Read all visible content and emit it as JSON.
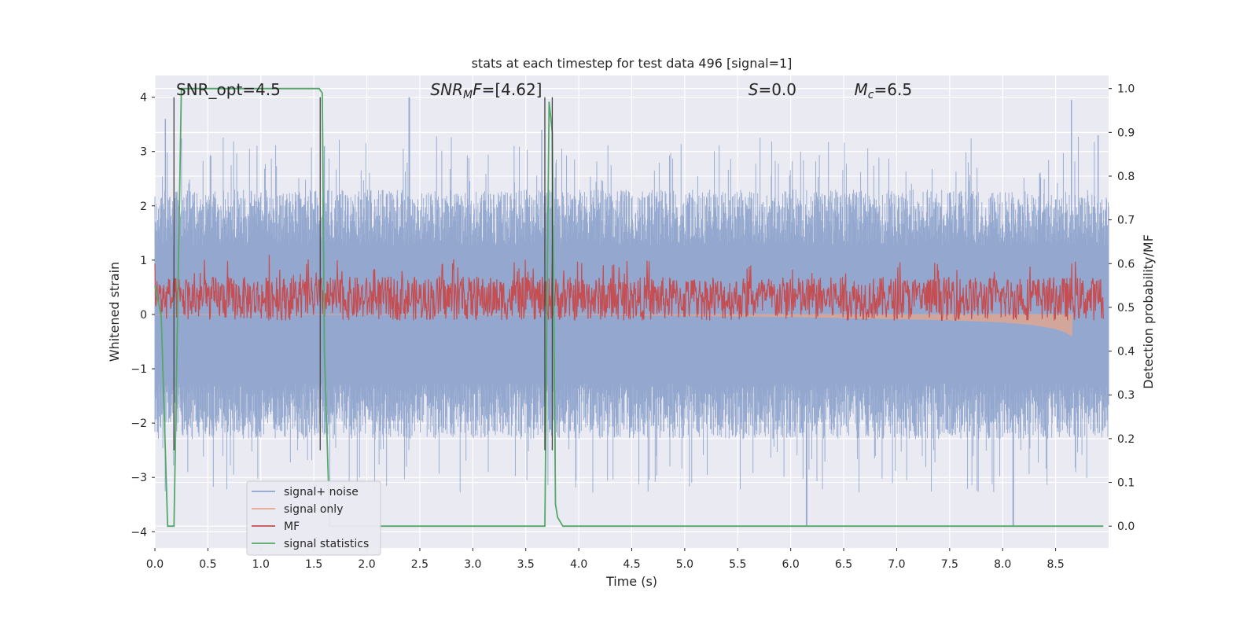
{
  "chart_data": {
    "type": "line",
    "title": "stats at each timestep for test data 496 [signal=1]",
    "xlabel": "Time (s)",
    "ylabel": "Whitened strain",
    "ylabel_right": "Detection probability/MF",
    "xlim": [
      0,
      9.0
    ],
    "ylim": [
      -4.3,
      4.4
    ],
    "ylim_right": [
      -0.05,
      1.03
    ],
    "xticks": [
      0.0,
      0.5,
      1.0,
      1.5,
      2.0,
      2.5,
      3.0,
      3.5,
      4.0,
      4.5,
      5.0,
      5.5,
      6.0,
      6.5,
      7.0,
      7.5,
      8.0,
      8.5
    ],
    "xtick_labels": [
      "0.0",
      "0.5",
      "1.0",
      "1.5",
      "2.0",
      "2.5",
      "3.0",
      "3.5",
      "4.0",
      "4.5",
      "5.0",
      "5.5",
      "6.0",
      "6.5",
      "7.0",
      "7.5",
      "8.0",
      "8.5"
    ],
    "yticks": [
      -4,
      -3,
      -2,
      -1,
      0,
      1,
      2,
      3,
      4
    ],
    "ytick_labels": [
      "−4",
      "−3",
      "−2",
      "−1",
      "0",
      "1",
      "2",
      "3",
      "4"
    ],
    "yticks_right": [
      0.0,
      0.1,
      0.2,
      0.3,
      0.4,
      0.5,
      0.6,
      0.7,
      0.8,
      0.9,
      1.0
    ],
    "ytick_labels_right": [
      "0.0",
      "0.1",
      "0.2",
      "0.3",
      "0.4",
      "0.5",
      "0.6",
      "0.7",
      "0.8",
      "0.9",
      "1.0"
    ],
    "grid": true,
    "legend_placement": "lower-left",
    "annotations": [
      {
        "text": "SNR_opt=4.5",
        "x": 0.2
      },
      {
        "text": "SNR_MF=[4.62]",
        "x": 2.6
      },
      {
        "text": "S=0.0",
        "x": 5.6
      },
      {
        "text": "M_c=6.5",
        "x": 6.6
      }
    ],
    "series": [
      {
        "name": "signal+ noise",
        "color": "#8fa4cc",
        "axis": "left",
        "envelope": {
          "t": [
            0,
            9.0
          ],
          "upper": 2.3,
          "lower": -2.3,
          "peaks": [
            [
              0.1,
              3.6
            ],
            [
              1.6,
              3.1
            ],
            [
              2.4,
              4.0
            ],
            [
              3.65,
              3.4
            ],
            [
              6.15,
              -3.9
            ],
            [
              8.65,
              3.95
            ],
            [
              8.1,
              -3.9
            ],
            [
              8.9,
              3.3
            ]
          ]
        }
      },
      {
        "name": "signal only",
        "color": "#e8a68c",
        "axis": "left",
        "t": [
          0.0,
          1.0,
          2.0,
          3.0,
          4.0,
          5.0,
          6.0,
          7.0,
          7.5,
          8.0,
          8.3,
          8.5,
          8.6,
          8.65,
          8.66
        ],
        "y": [
          0.0,
          0.0,
          0.0,
          0.0,
          0.0,
          -0.02,
          -0.04,
          -0.08,
          -0.1,
          -0.14,
          -0.19,
          -0.26,
          -0.33,
          -0.4,
          0.0
        ]
      },
      {
        "name": "MF",
        "color": "#c44e52",
        "axis": "right",
        "baseline": 0.52,
        "spread": 0.05,
        "spikes": [
          [
            0.0,
            0.6
          ],
          [
            1.08,
            0.62
          ],
          [
            2.82,
            0.61
          ],
          [
            3.75,
            0.6
          ],
          [
            8.65,
            0.6
          ]
        ]
      },
      {
        "name": "signal statistics",
        "color": "#55a868",
        "axis": "right",
        "t": [
          0.0,
          0.06,
          0.12,
          0.18,
          0.25,
          0.3,
          1.4,
          1.55,
          1.58,
          1.6,
          1.65,
          1.7,
          3.65,
          3.68,
          3.7,
          3.72,
          3.75,
          3.78,
          3.8,
          3.85,
          3.9,
          8.95
        ],
        "y": [
          0.55,
          0.48,
          0.0,
          0.0,
          1.0,
          1.0,
          1.0,
          1.0,
          0.99,
          0.4,
          0.0,
          0.0,
          0.0,
          0.0,
          0.5,
          0.97,
          0.9,
          0.05,
          0.02,
          0.0,
          0.0,
          0.0
        ]
      }
    ],
    "vlines": [
      0.18,
      1.56,
      3.68,
      3.75
    ]
  }
}
